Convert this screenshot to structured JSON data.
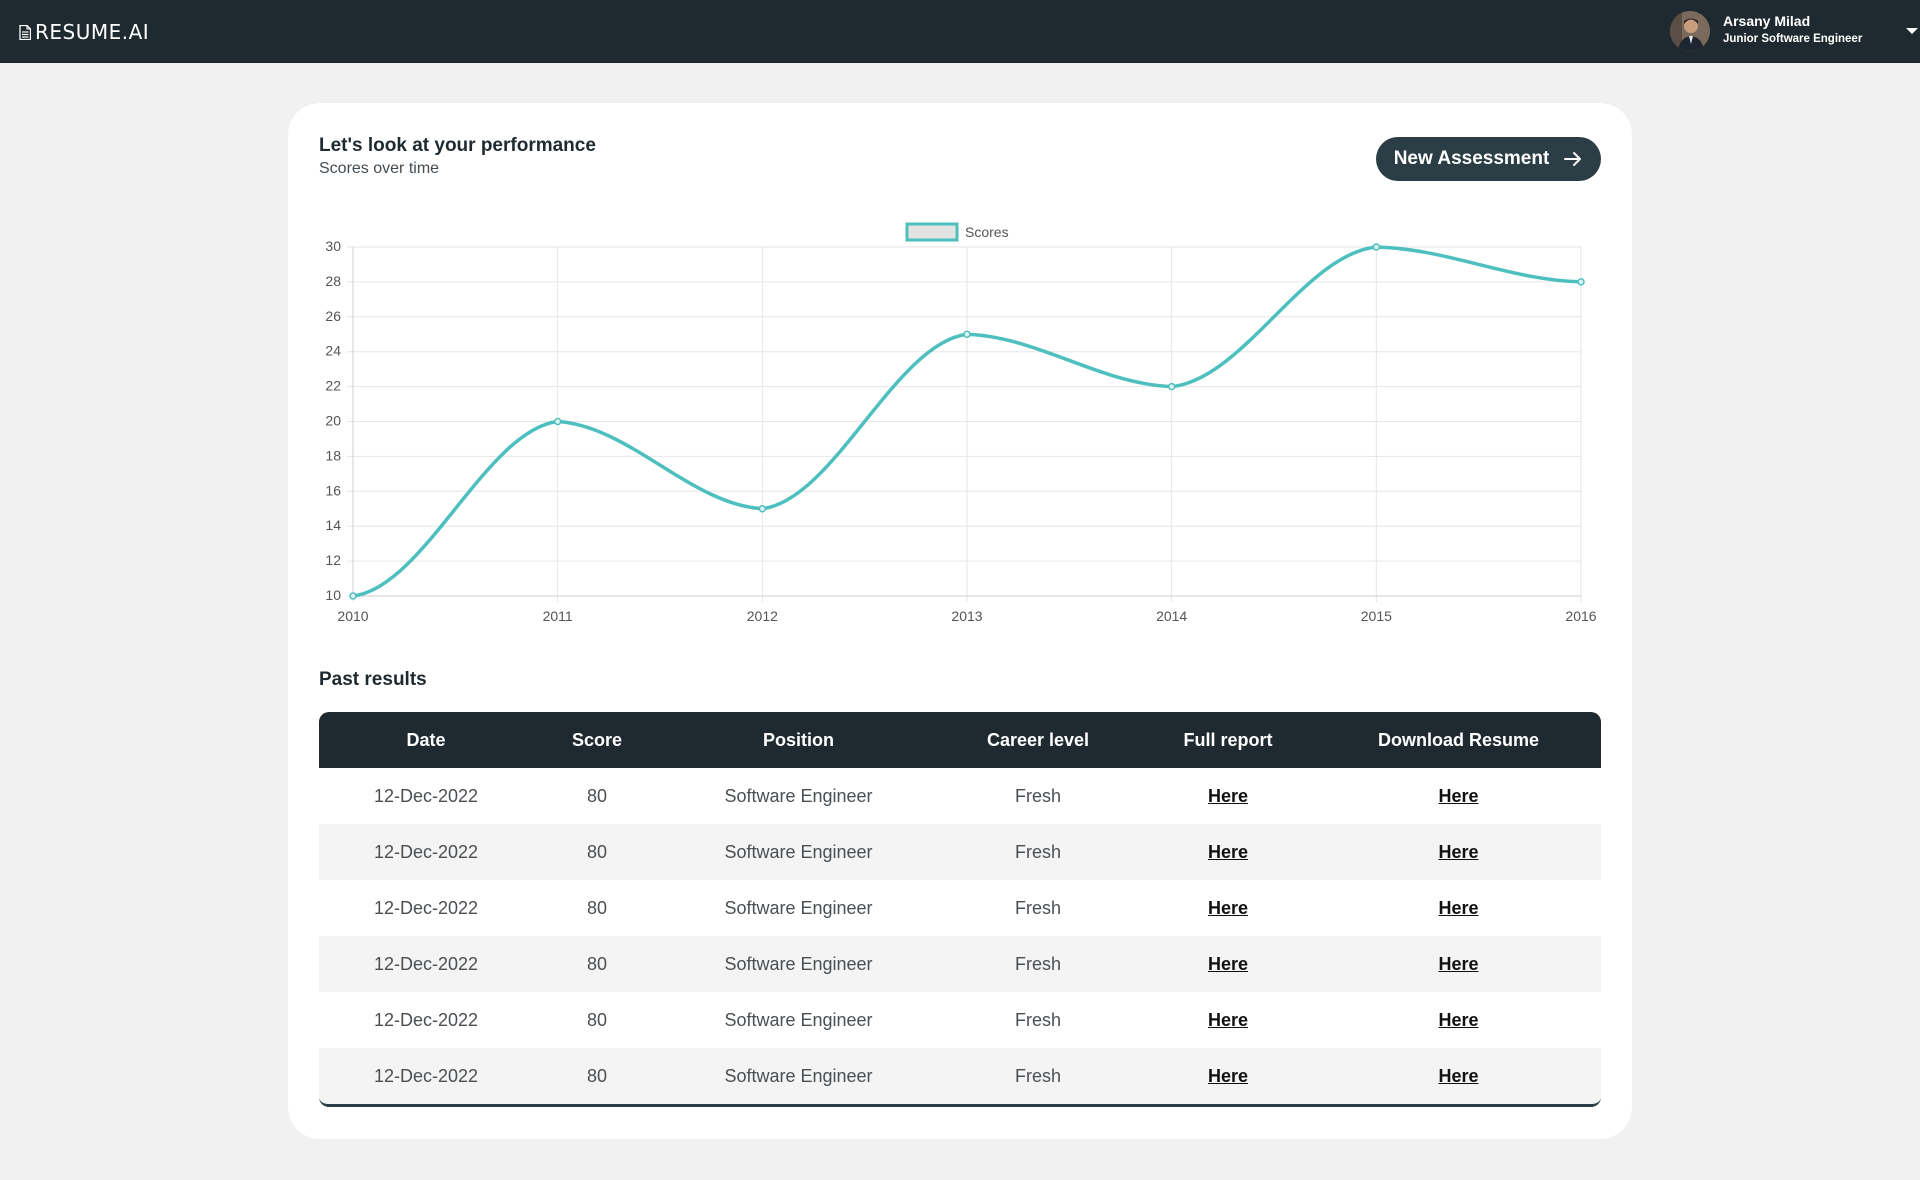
{
  "app": {
    "logo_text": "RESUME.AI",
    "logo_icon": "document-icon"
  },
  "user": {
    "name": "Arsany Milad",
    "role": "Junior Software Engineer",
    "avatar_icon": "avatar-photo",
    "menu_icon": "caret-down-icon"
  },
  "performance": {
    "title": "Let's look at your performance",
    "subtitle": "Scores over time",
    "new_assessment_label": "New Assessment",
    "new_assessment_icon": "arrow-right-icon"
  },
  "chart_data": {
    "type": "line",
    "x": [
      "2010",
      "2011",
      "2012",
      "2013",
      "2014",
      "2015",
      "2016"
    ],
    "series": [
      {
        "name": "Scores",
        "values": [
          10,
          20,
          15,
          25,
          22,
          30,
          28
        ]
      }
    ],
    "ylim": [
      10,
      30
    ],
    "yticks": [
      10,
      12,
      14,
      16,
      18,
      20,
      22,
      24,
      26,
      28,
      30
    ],
    "grid": true,
    "legend_position": "top-center",
    "line_color": "#4dbfbf",
    "legend_fill": "#e3e3e3"
  },
  "past_results": {
    "title": "Past results",
    "columns": [
      "Date",
      "Score",
      "Position",
      "Career level",
      "Full report",
      "Download Resume"
    ],
    "rows": [
      {
        "date": "12-Dec-2022",
        "score": "80",
        "position": "Software Engineer",
        "career_level": "Fresh",
        "full_report": "Here",
        "download_resume": "Here"
      },
      {
        "date": "12-Dec-2022",
        "score": "80",
        "position": "Software Engineer",
        "career_level": "Fresh",
        "full_report": "Here",
        "download_resume": "Here"
      },
      {
        "date": "12-Dec-2022",
        "score": "80",
        "position": "Software Engineer",
        "career_level": "Fresh",
        "full_report": "Here",
        "download_resume": "Here"
      },
      {
        "date": "12-Dec-2022",
        "score": "80",
        "position": "Software Engineer",
        "career_level": "Fresh",
        "full_report": "Here",
        "download_resume": "Here"
      },
      {
        "date": "12-Dec-2022",
        "score": "80",
        "position": "Software Engineer",
        "career_level": "Fresh",
        "full_report": "Here",
        "download_resume": "Here"
      },
      {
        "date": "12-Dec-2022",
        "score": "80",
        "position": "Software Engineer",
        "career_level": "Fresh",
        "full_report": "Here",
        "download_resume": "Here"
      }
    ]
  },
  "colors": {
    "header_bg": "#1f2a30",
    "button_bg": "#2c3e45",
    "page_bg": "#f1f1f1",
    "accent": "#4dbfbf"
  }
}
